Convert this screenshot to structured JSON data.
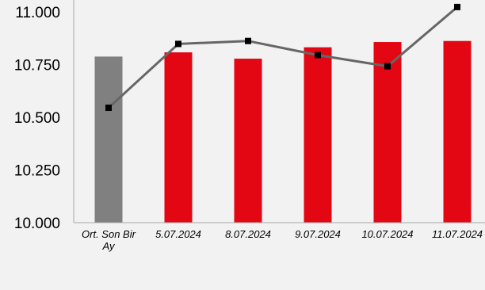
{
  "chart_data": {
    "type": "bar",
    "categories": [
      [
        "Ort. Son Bir",
        "Ay"
      ],
      [
        "5.07.2024"
      ],
      [
        "8.07.2024"
      ],
      [
        "9.07.2024"
      ],
      [
        "10.07.2024"
      ],
      [
        "11.07.2024"
      ]
    ],
    "series": [
      {
        "kind": "bar",
        "values": [
          10.788,
          10.808,
          10.778,
          10.832,
          10.857,
          10.862
        ],
        "colors": [
          "#808080",
          "#e30613",
          "#e30613",
          "#e30613",
          "#e30613",
          "#e30613"
        ]
      },
      {
        "kind": "line",
        "values": [
          10.545,
          10.848,
          10.862,
          10.795,
          10.742,
          11.023
        ],
        "color": "#666666",
        "marker_color": "#000000"
      }
    ],
    "y_ticks": [
      "10.000",
      "10.250",
      "10.500",
      "10.750",
      "11.000"
    ],
    "ylim": [
      10.0,
      11.0
    ],
    "grid": false,
    "legend": "none"
  }
}
